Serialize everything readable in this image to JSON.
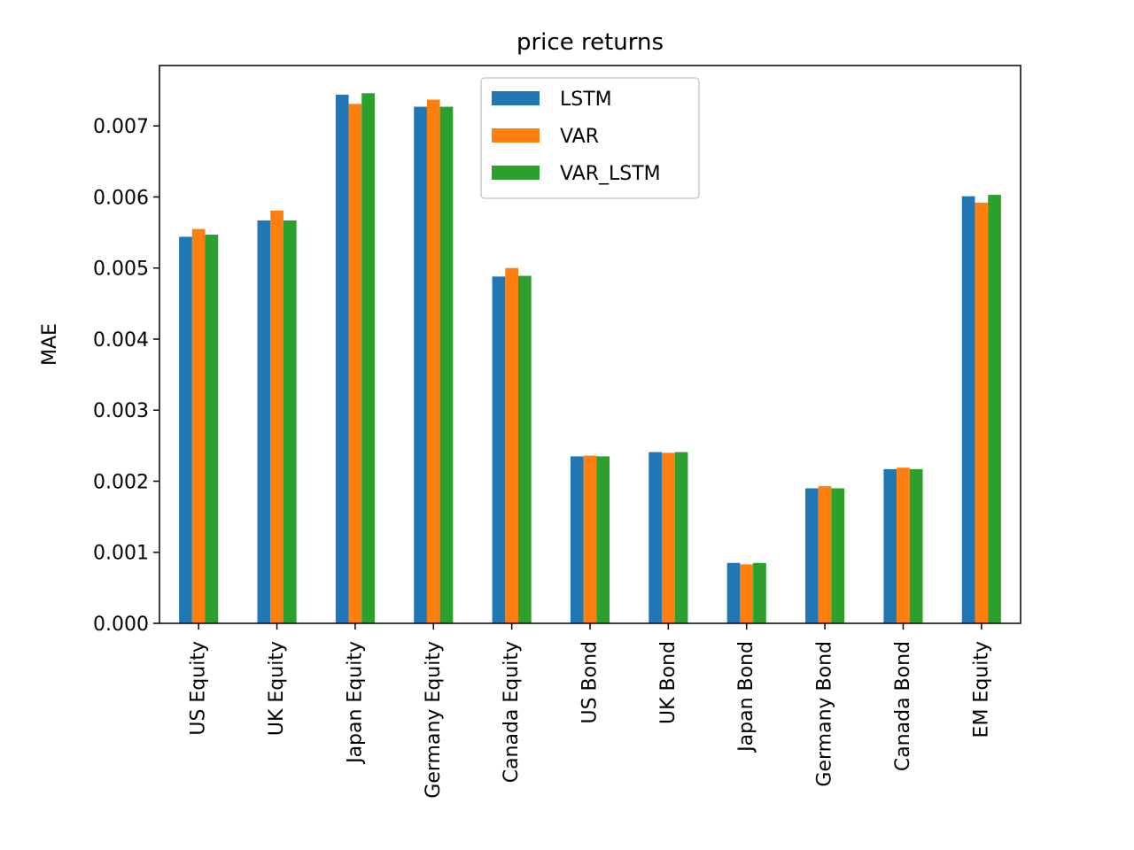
{
  "chart_data": {
    "type": "bar",
    "title": "price returns",
    "xlabel": "",
    "ylabel": "MAE",
    "categories": [
      "US Equity",
      "UK Equity",
      "Japan Equity",
      "Germany Equity",
      "Canada Equity",
      "US Bond",
      "UK Bond",
      "Japan Bond",
      "Germany Bond",
      "Canada Bond",
      "EM Equity"
    ],
    "series": [
      {
        "name": "LSTM",
        "color": "#1f77b4",
        "values": [
          0.00544,
          0.00567,
          0.00744,
          0.00727,
          0.00488,
          0.00235,
          0.00241,
          0.00085,
          0.0019,
          0.00217,
          0.00601
        ]
      },
      {
        "name": "VAR",
        "color": "#ff7f0e",
        "values": [
          0.00555,
          0.00581,
          0.00731,
          0.00737,
          0.005,
          0.00236,
          0.0024,
          0.00083,
          0.00193,
          0.00219,
          0.00592
        ]
      },
      {
        "name": "VAR_LSTM",
        "color": "#2ca02c",
        "values": [
          0.00547,
          0.00567,
          0.00746,
          0.00727,
          0.00489,
          0.00235,
          0.00241,
          0.00085,
          0.0019,
          0.00217,
          0.00603
        ]
      }
    ],
    "yticks": [
      "0.000",
      "0.001",
      "0.002",
      "0.003",
      "0.004",
      "0.005",
      "0.006",
      "0.007"
    ],
    "ylim": [
      0,
      0.00785
    ],
    "grid": false,
    "legend_position": "upper-center"
  }
}
